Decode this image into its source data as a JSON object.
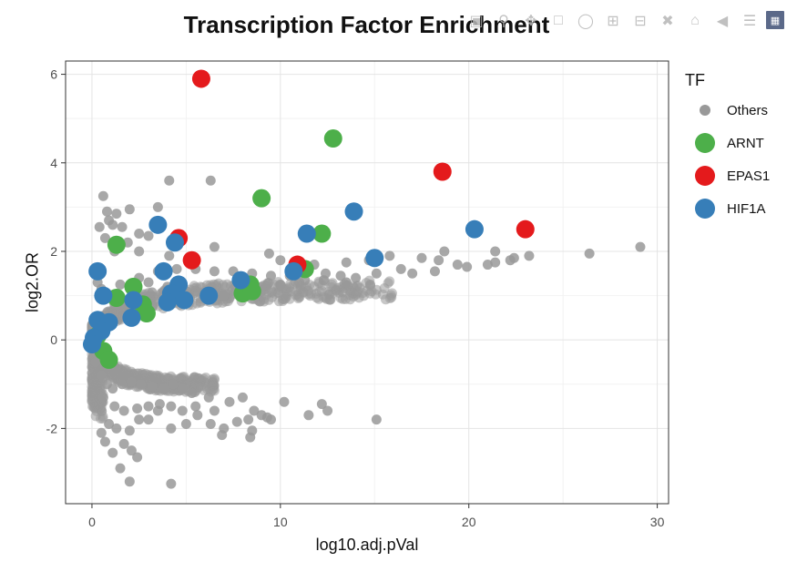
{
  "chart_data": {
    "type": "scatter",
    "title": "Transcription Factor Enrichment",
    "xlabel": "log10.adj.pVal",
    "ylabel": "log2.OR",
    "xlim": [
      -1.4,
      30.6
    ],
    "ylim": [
      -3.7,
      6.3
    ],
    "xticks": [
      0,
      10,
      20,
      30
    ],
    "yticks": [
      -2,
      0,
      2,
      4,
      6
    ],
    "grid": true,
    "legend_title": "TF",
    "legend_position": "right",
    "series": [
      {
        "name": "Others",
        "color": "#999999",
        "points": [
          [
            4.1,
            3.6
          ],
          [
            6.3,
            3.6
          ],
          [
            0.6,
            3.25
          ],
          [
            3.5,
            3.0
          ],
          [
            0.8,
            2.9
          ],
          [
            1.3,
            2.85
          ],
          [
            2.0,
            2.95
          ],
          [
            0.9,
            2.7
          ],
          [
            1.1,
            2.6
          ],
          [
            1.6,
            2.55
          ],
          [
            0.4,
            2.55
          ],
          [
            2.5,
            2.4
          ],
          [
            3.0,
            2.35
          ],
          [
            1.9,
            2.2
          ],
          [
            0.7,
            2.3
          ],
          [
            6.5,
            2.1
          ],
          [
            2.5,
            2.0
          ],
          [
            1.2,
            2.0
          ],
          [
            4.1,
            1.9
          ],
          [
            9.4,
            1.95
          ],
          [
            10.0,
            1.8
          ],
          [
            11.8,
            1.7
          ],
          [
            13.5,
            1.75
          ],
          [
            14.7,
            1.8
          ],
          [
            15.8,
            1.9
          ],
          [
            17.5,
            1.85
          ],
          [
            18.4,
            1.8
          ],
          [
            18.7,
            2.0
          ],
          [
            19.4,
            1.7
          ],
          [
            21.0,
            1.7
          ],
          [
            21.4,
            1.75
          ],
          [
            21.4,
            2.0
          ],
          [
            22.2,
            1.8
          ],
          [
            22.4,
            1.85
          ],
          [
            23.2,
            1.9
          ],
          [
            26.4,
            1.95
          ],
          [
            29.1,
            2.1
          ],
          [
            16.4,
            1.6
          ],
          [
            17.0,
            1.5
          ],
          [
            18.2,
            1.55
          ],
          [
            19.9,
            1.65
          ],
          [
            12.4,
            1.5
          ],
          [
            13.2,
            1.45
          ],
          [
            14.0,
            1.4
          ],
          [
            15.1,
            1.5
          ],
          [
            0.3,
            1.3
          ],
          [
            0.5,
            1.15
          ],
          [
            0.8,
            1.05
          ],
          [
            1.5,
            1.25
          ],
          [
            2.5,
            1.4
          ],
          [
            3.5,
            1.55
          ],
          [
            4.5,
            1.6
          ],
          [
            5.5,
            1.6
          ],
          [
            6.5,
            1.55
          ],
          [
            7.5,
            1.55
          ],
          [
            8.5,
            1.5
          ],
          [
            9.5,
            1.45
          ],
          [
            10.5,
            1.45
          ],
          [
            11.3,
            1.35
          ],
          [
            12.3,
            1.35
          ],
          [
            13.5,
            1.3
          ],
          [
            3.0,
            1.3
          ],
          [
            4.0,
            1.2
          ],
          [
            5.0,
            1.1
          ],
          [
            6.0,
            1.05
          ],
          [
            7.0,
            1.0
          ],
          [
            8.0,
            1.0
          ],
          [
            9.0,
            1.2
          ],
          [
            10.0,
            1.25
          ],
          [
            11.0,
            1.3
          ],
          [
            1.2,
            0.8
          ],
          [
            2.0,
            0.9
          ],
          [
            3.2,
            0.75
          ],
          [
            5.2,
            0.95
          ],
          [
            0.2,
            -0.5
          ],
          [
            0.5,
            -0.8
          ],
          [
            0.8,
            -1.0
          ],
          [
            1.1,
            -1.1
          ],
          [
            1.6,
            -1.0
          ],
          [
            2.1,
            -0.95
          ],
          [
            2.6,
            -1.0
          ],
          [
            3.2,
            -1.05
          ],
          [
            3.8,
            -1.1
          ],
          [
            4.3,
            -1.0
          ],
          [
            4.8,
            -1.1
          ],
          [
            5.3,
            -1.2
          ],
          [
            0.6,
            -1.3
          ],
          [
            1.2,
            -1.5
          ],
          [
            1.7,
            -1.6
          ],
          [
            2.4,
            -1.55
          ],
          [
            3.0,
            -1.5
          ],
          [
            3.6,
            -1.45
          ],
          [
            4.2,
            -1.5
          ],
          [
            4.8,
            -1.6
          ],
          [
            5.5,
            -1.5
          ],
          [
            6.2,
            -1.3
          ],
          [
            6.5,
            -1.6
          ],
          [
            7.3,
            -1.4
          ],
          [
            8.0,
            -1.3
          ],
          [
            8.6,
            -1.6
          ],
          [
            9.5,
            -1.8
          ],
          [
            10.2,
            -1.4
          ],
          [
            11.5,
            -1.7
          ],
          [
            12.2,
            -1.45
          ],
          [
            12.5,
            -1.6
          ],
          [
            15.1,
            -1.8
          ],
          [
            0.5,
            -2.1
          ],
          [
            0.9,
            -1.9
          ],
          [
            1.3,
            -2.0
          ],
          [
            2.0,
            -2.05
          ],
          [
            2.5,
            -1.8
          ],
          [
            3.0,
            -1.8
          ],
          [
            3.5,
            -1.6
          ],
          [
            4.2,
            -2.0
          ],
          [
            5.0,
            -1.9
          ],
          [
            5.6,
            -1.7
          ],
          [
            6.3,
            -1.9
          ],
          [
            7.0,
            -2.0
          ],
          [
            7.7,
            -1.85
          ],
          [
            8.3,
            -1.8
          ],
          [
            8.5,
            -2.05
          ],
          [
            9.0,
            -1.7
          ],
          [
            9.3,
            -1.75
          ],
          [
            6.9,
            -2.15
          ],
          [
            8.4,
            -2.2
          ],
          [
            0.7,
            -2.3
          ],
          [
            1.1,
            -2.55
          ],
          [
            1.7,
            -2.35
          ],
          [
            2.1,
            -2.5
          ],
          [
            2.4,
            -2.65
          ],
          [
            1.5,
            -2.9
          ],
          [
            2.0,
            -3.2
          ],
          [
            4.2,
            -3.25
          ]
        ]
      },
      {
        "name": "ARNT",
        "color": "#4daf4a",
        "points": [
          [
            12.8,
            4.55
          ],
          [
            9.0,
            3.2
          ],
          [
            12.2,
            2.4
          ],
          [
            1.3,
            2.15
          ],
          [
            2.2,
            1.2
          ],
          [
            1.3,
            0.95
          ],
          [
            2.7,
            0.8
          ],
          [
            2.9,
            0.6
          ],
          [
            8.0,
            1.05
          ],
          [
            8.4,
            1.25
          ],
          [
            8.5,
            1.1
          ],
          [
            11.3,
            1.6
          ],
          [
            0.6,
            -0.25
          ],
          [
            0.9,
            -0.45
          ],
          [
            0.3,
            0.1
          ]
        ]
      },
      {
        "name": "EPAS1",
        "color": "#e41a1c",
        "points": [
          [
            5.8,
            5.9
          ],
          [
            18.6,
            3.8
          ],
          [
            23.0,
            2.5
          ],
          [
            4.6,
            2.3
          ],
          [
            5.3,
            1.8
          ],
          [
            10.9,
            1.7
          ]
        ]
      },
      {
        "name": "HIF1A",
        "color": "#377eb8",
        "points": [
          [
            13.9,
            2.9
          ],
          [
            3.5,
            2.6
          ],
          [
            4.4,
            2.2
          ],
          [
            11.4,
            2.4
          ],
          [
            20.3,
            2.5
          ],
          [
            15.0,
            1.85
          ],
          [
            10.7,
            1.55
          ],
          [
            0.3,
            1.55
          ],
          [
            3.8,
            1.55
          ],
          [
            4.6,
            1.25
          ],
          [
            4.2,
            1.05
          ],
          [
            7.9,
            1.35
          ],
          [
            6.2,
            1.0
          ],
          [
            4.9,
            0.9
          ],
          [
            4.0,
            0.85
          ],
          [
            2.2,
            0.9
          ],
          [
            0.6,
            1.0
          ],
          [
            2.1,
            0.5
          ],
          [
            0.3,
            0.45
          ],
          [
            0.9,
            0.4
          ],
          [
            0.5,
            0.2
          ],
          [
            0.1,
            0.05
          ],
          [
            0.0,
            -0.1
          ]
        ]
      }
    ]
  },
  "modebar": {
    "icons": [
      "camera-icon",
      "zoom-icon",
      "pan-icon",
      "box-select-icon",
      "lasso-icon",
      "zoom-in-icon",
      "zoom-out-icon",
      "autoscale-icon",
      "reset-axes-icon",
      "hover-closest-icon",
      "hover-compare-icon",
      "plotly-logo-icon"
    ]
  }
}
